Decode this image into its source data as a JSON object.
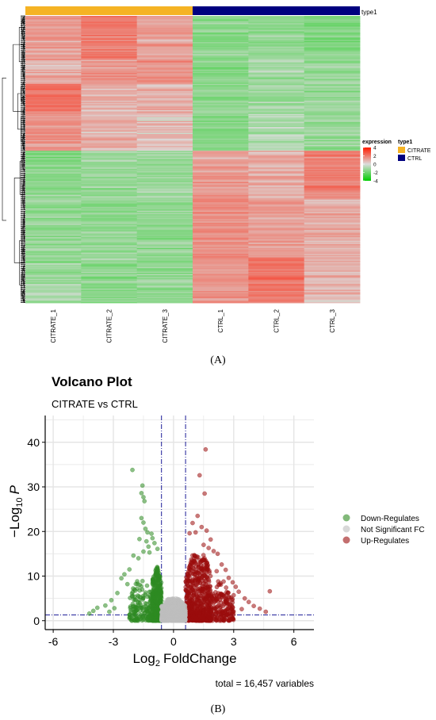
{
  "panel_labels": {
    "a": "(A)",
    "b": "(B)"
  },
  "chart_data": [
    {
      "type": "heatmap",
      "samples": [
        "CITRATE_1",
        "CITRATE_2",
        "CITRATE_3",
        "CTRL_1",
        "CTRL_2",
        "CTRL_3"
      ],
      "annotation": {
        "name": "type1",
        "legend_title": "type1",
        "groups": [
          {
            "label": "CITRATE",
            "color": "#f5b324",
            "columns": [
              0,
              1,
              2
            ]
          },
          {
            "label": "CTRL",
            "color": "#00007f",
            "columns": [
              3,
              4,
              5
            ]
          }
        ]
      },
      "color_legend": {
        "title": "expression",
        "ticks": [
          4,
          2,
          0,
          -2,
          -4
        ],
        "range": [
          -4,
          4
        ],
        "colors": {
          "high": "#ff1a00",
          "mid": "#dcdcdc",
          "low": "#00cc00"
        }
      },
      "clusters": [
        {
          "name": "upper gene cluster",
          "fraction": 0.47,
          "group_means": [
            {
              "from": 0.0,
              "to": 0.32,
              "values": [
                1.0,
                1.6,
                0.9,
                -1.2,
                -1.0,
                -1.3
              ]
            },
            {
              "from": 0.32,
              "to": 0.5,
              "values": [
                0.6,
                1.2,
                1.2,
                -1.0,
                -0.8,
                -0.9
              ]
            },
            {
              "from": 0.5,
              "to": 0.7,
              "values": [
                2.0,
                0.6,
                0.6,
                -1.0,
                -0.9,
                -0.9
              ]
            },
            {
              "from": 0.7,
              "to": 1.0,
              "values": [
                1.3,
                0.6,
                0.4,
                -1.1,
                -0.6,
                -1.0
              ]
            }
          ]
        },
        {
          "name": "lower gene cluster",
          "fraction": 0.53,
          "group_means": [
            {
              "from": 0.0,
              "to": 0.3,
              "values": [
                -1.2,
                -1.0,
                -0.9,
                1.0,
                0.6,
                1.5
              ]
            },
            {
              "from": 0.3,
              "to": 0.7,
              "values": [
                -1.0,
                -1.1,
                -1.0,
                1.3,
                1.0,
                0.7
              ]
            },
            {
              "from": 0.7,
              "to": 1.0,
              "values": [
                -0.9,
                -1.0,
                -1.0,
                1.2,
                1.9,
                0.5
              ]
            }
          ]
        }
      ]
    },
    {
      "type": "scatter",
      "title": "Volcano Plot",
      "subtitle": "CITRATE vs CTRL",
      "xlabel": "FoldChange",
      "xlabel_prefix": "Log",
      "xlabel_sub": "2",
      "ylabel_prefix": "−Log",
      "ylabel_sub": "10",
      "ylabel_var": "P",
      "xlim": [
        -6.4,
        7.0
      ],
      "ylim": [
        -2,
        46
      ],
      "xticks": [
        -6,
        -3,
        0,
        3,
        6
      ],
      "yticks": [
        0,
        10,
        20,
        30,
        40
      ],
      "thresholds": {
        "fc": [
          -0.6,
          0.6
        ],
        "p_line": 1.3
      },
      "caption": "total = 16,457 variables",
      "legend": [
        {
          "name": "Down-Regulates",
          "color": "#2e8b22"
        },
        {
          "name": "Not Significant FC",
          "color": "#bebebe"
        },
        {
          "name": "Up-Regulates",
          "color": "#9b0d0d"
        }
      ],
      "series": [
        {
          "name": "Down-Regulates",
          "color": "#2e8b22",
          "points": [
            [
              -2.05,
              33.8
            ],
            [
              -1.55,
              30.3
            ],
            [
              -1.6,
              28.6
            ],
            [
              -1.5,
              27.7
            ],
            [
              -1.45,
              26.8
            ],
            [
              -1.6,
              23.0
            ],
            [
              -1.5,
              22.0
            ],
            [
              -1.4,
              20.6
            ],
            [
              -1.3,
              19.8
            ],
            [
              -1.7,
              18.3
            ],
            [
              -1.35,
              17.8
            ],
            [
              -1.1,
              19.5
            ],
            [
              -1.05,
              18.5
            ],
            [
              -1.25,
              16.6
            ],
            [
              -0.95,
              17.4
            ],
            [
              -1.5,
              15.5
            ],
            [
              -1.2,
              15.3
            ],
            [
              -0.8,
              16.1
            ],
            [
              -2.0,
              14.6
            ],
            [
              -1.75,
              14.0
            ],
            [
              -2.2,
              11.5
            ],
            [
              -2.45,
              10.4
            ],
            [
              -2.6,
              9.5
            ],
            [
              -2.3,
              8.2
            ],
            [
              -2.8,
              6.2
            ],
            [
              -3.1,
              4.6
            ],
            [
              -3.4,
              3.4
            ],
            [
              -3.8,
              2.9
            ],
            [
              -4.0,
              2.2
            ],
            [
              -4.2,
              1.6
            ],
            [
              -2.95,
              2.8
            ],
            [
              -3.2,
              2.0
            ]
          ]
        },
        {
          "name": "Up-Regulates",
          "color": "#9b0d0d",
          "points": [
            [
              1.6,
              38.4
            ],
            [
              1.3,
              32.6
            ],
            [
              1.55,
              28.5
            ],
            [
              1.2,
              23.5
            ],
            [
              1.4,
              21.0
            ],
            [
              0.95,
              21.9
            ],
            [
              1.65,
              20.2
            ],
            [
              1.1,
              19.8
            ],
            [
              0.8,
              19.6
            ],
            [
              1.85,
              18.2
            ],
            [
              1.5,
              17.0
            ],
            [
              1.75,
              16.3
            ],
            [
              2.0,
              15.6
            ],
            [
              2.2,
              15.0
            ],
            [
              2.4,
              12.6
            ],
            [
              2.6,
              11.4
            ],
            [
              2.15,
              11.1
            ],
            [
              2.75,
              9.6
            ],
            [
              2.95,
              8.6
            ],
            [
              3.1,
              7.6
            ],
            [
              3.25,
              6.5
            ],
            [
              3.55,
              5.0
            ],
            [
              3.75,
              4.2
            ],
            [
              4.0,
              3.3
            ],
            [
              4.3,
              2.7
            ],
            [
              4.8,
              6.6
            ],
            [
              4.6,
              2.0
            ],
            [
              3.4,
              2.6
            ],
            [
              2.85,
              3.6
            ]
          ]
        }
      ],
      "density_clouds": [
        {
          "series": "Down-Regulates",
          "x_from": -1.05,
          "x_to": -0.6,
          "ymax": 14,
          "count": 450
        },
        {
          "series": "Down-Regulates",
          "x_from": -2.2,
          "x_to": -1.05,
          "ymax": 9,
          "count": 160
        },
        {
          "series": "Up-Regulates",
          "x_from": 0.6,
          "x_to": 1.9,
          "ymax": 15,
          "count": 650
        },
        {
          "series": "Up-Regulates",
          "x_from": 1.9,
          "x_to": 3.0,
          "ymax": 9,
          "count": 170
        },
        {
          "series": "Not Significant FC",
          "x_from": -0.6,
          "x_to": 0.6,
          "ymax": 5,
          "count": 700
        }
      ]
    }
  ]
}
